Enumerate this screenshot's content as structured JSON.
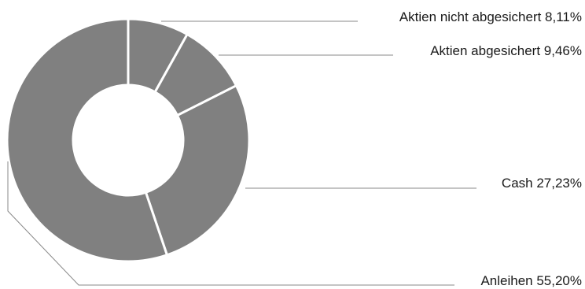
{
  "chart_data": {
    "type": "pie",
    "donut": true,
    "title": "",
    "legend": "none",
    "colors": {
      "slice": "#808080",
      "separator": "#ffffff",
      "leader": "#8a8a8a",
      "text": "#1a1a1a"
    },
    "slices": [
      {
        "label": "Aktien nicht abgesichert 8,11%",
        "value": 8.11
      },
      {
        "label": "Aktien abgesichert 9,46%",
        "value": 9.46
      },
      {
        "label": "Cash 27,23%",
        "value": 27.23
      },
      {
        "label": "Anleihen 55,20%",
        "value": 55.2
      }
    ]
  }
}
